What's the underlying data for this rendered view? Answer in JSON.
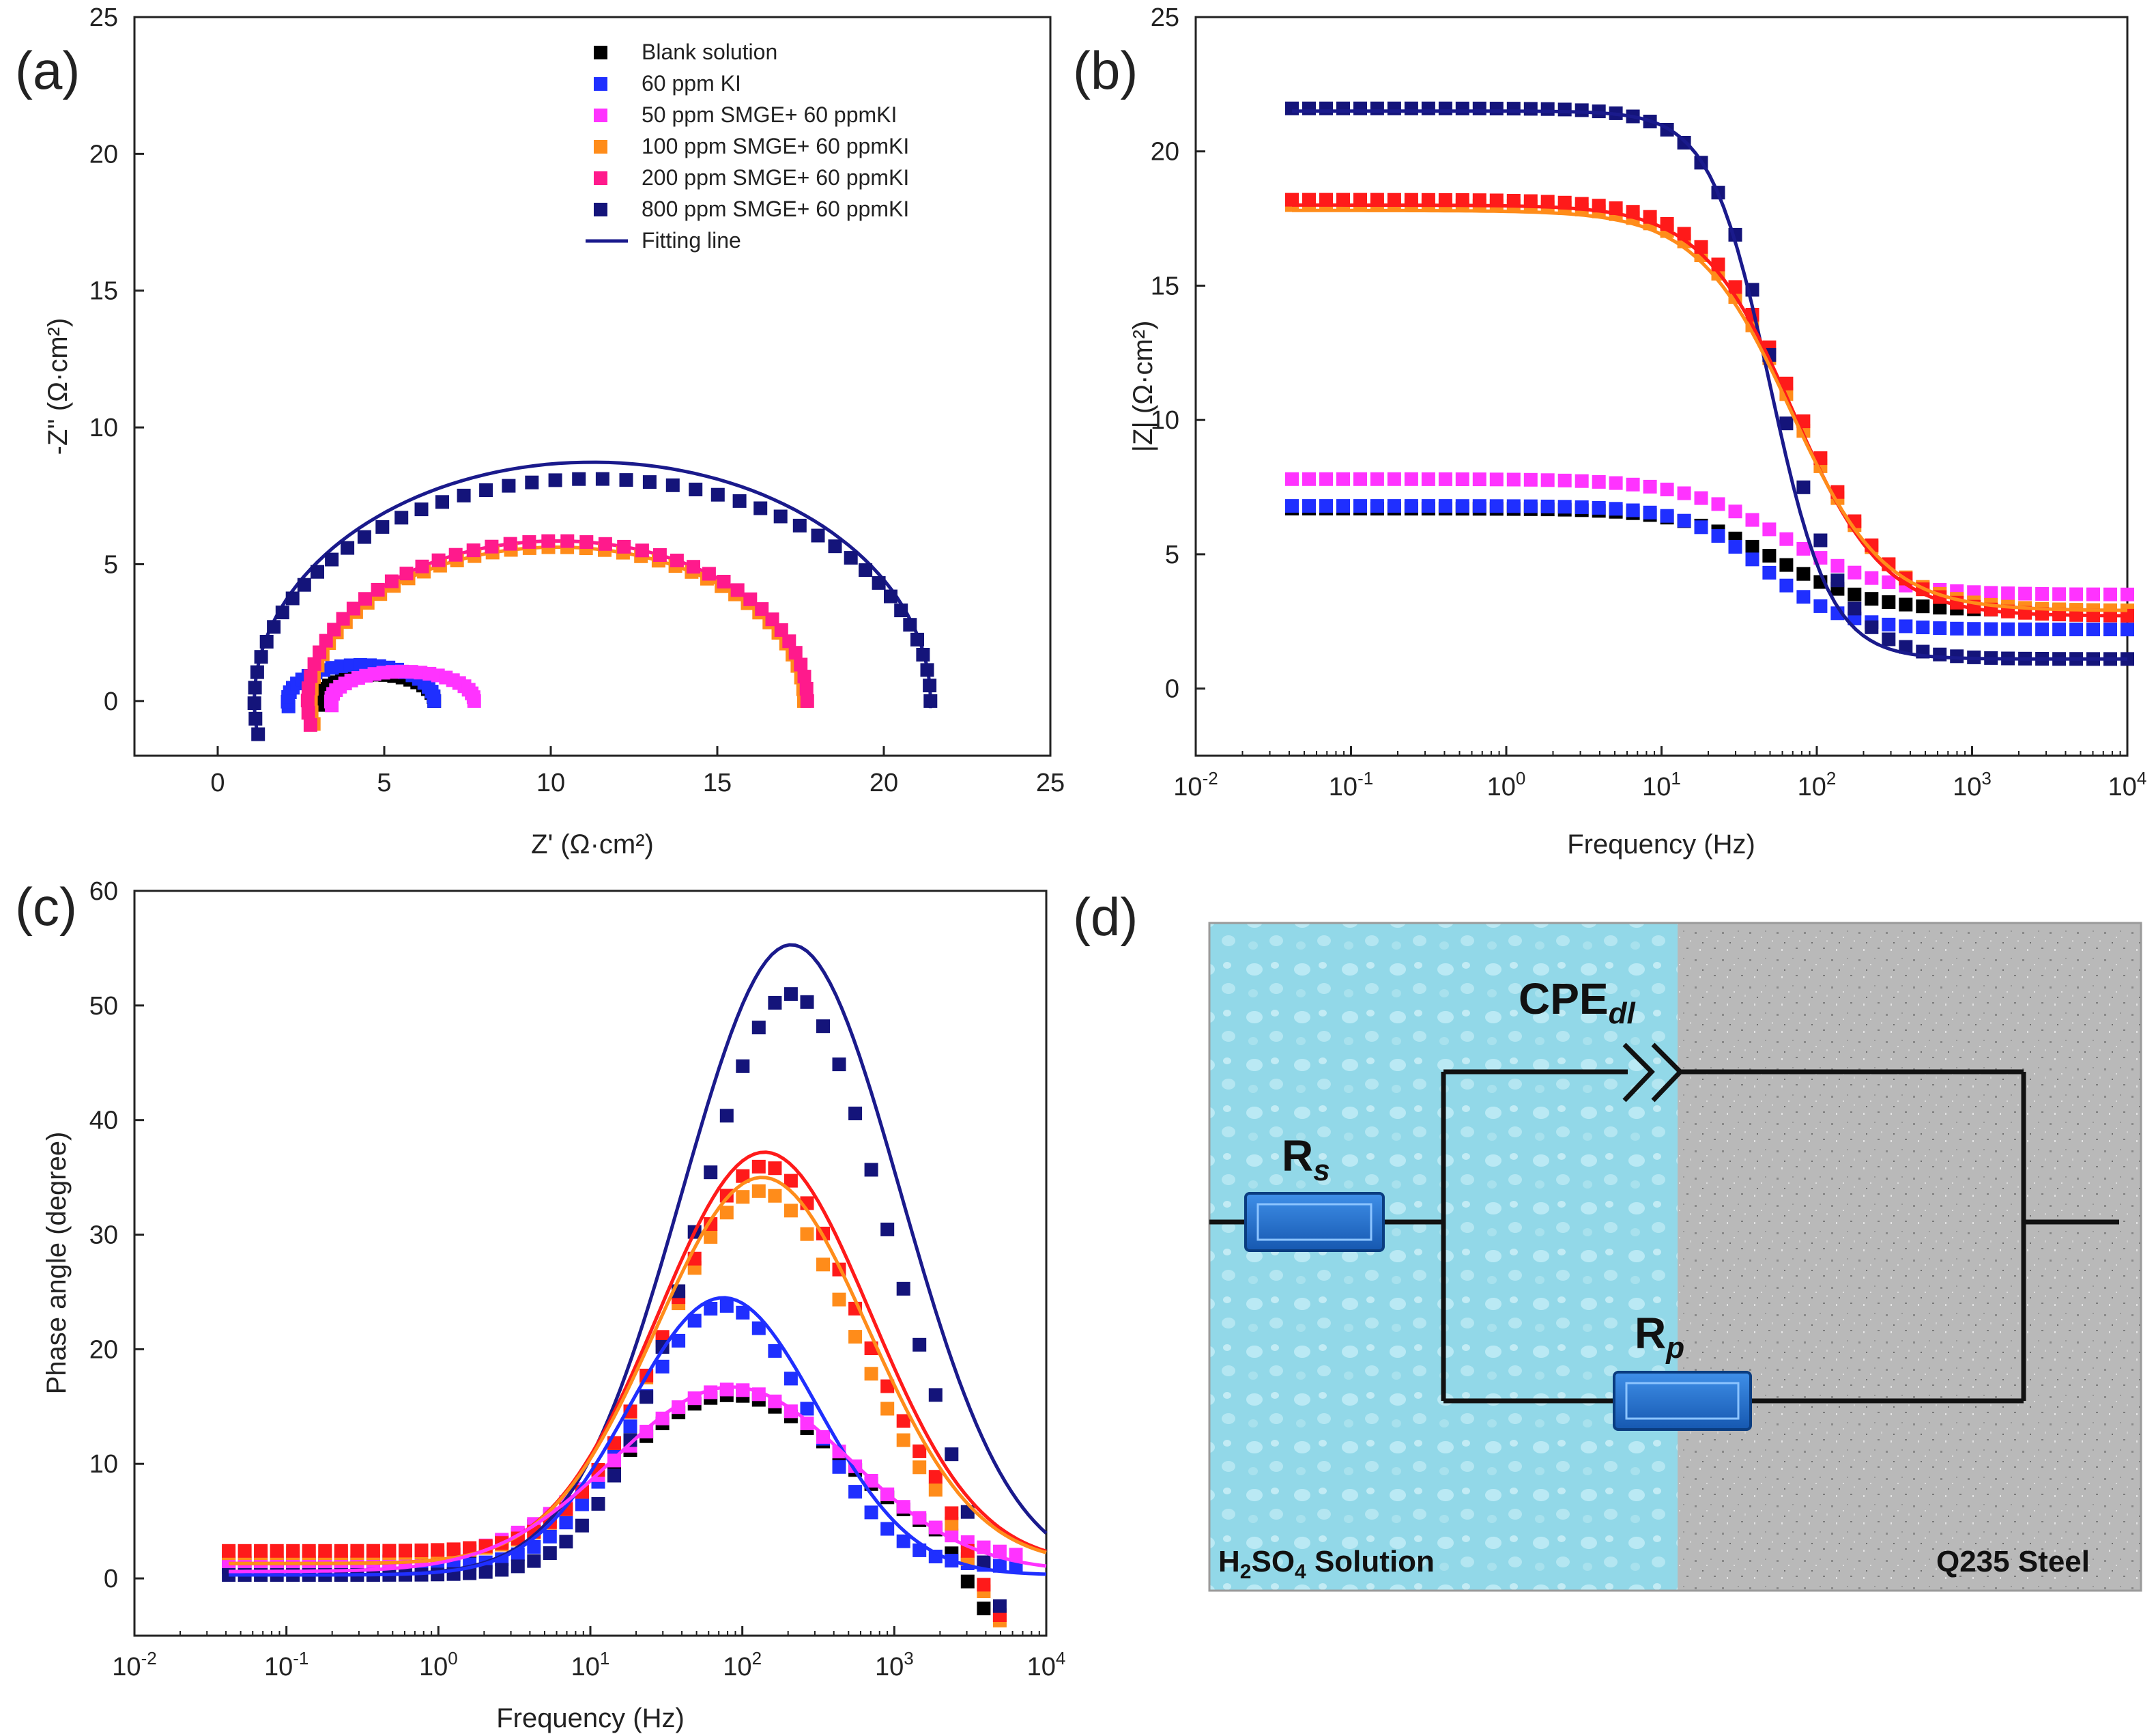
{
  "figure_labels": {
    "a": "(a)",
    "b": "(b)",
    "c": "(c)",
    "d": "(d)"
  },
  "colors": {
    "blank": "#000000",
    "ki": "#1f2fff",
    "s50": "#ff33ff",
    "s100": "#ff8c1a",
    "s200": "#ff1a8c",
    "s800": "#14147a",
    "fit": "#1a1a8c",
    "red": "#ff1a1a",
    "solution": "#8fd6e6",
    "steel": "#b8b8b8",
    "resistor": "#1e6fd0"
  },
  "chart_data": [
    {
      "id": "a",
      "type": "scatter",
      "title": "",
      "xlabel": "Z' (Ω·cm²)",
      "ylabel": "-Z'' (Ω·cm²)",
      "xlim": [
        -2.5,
        25
      ],
      "ylim": [
        -2,
        25
      ],
      "xticks": [
        0,
        5,
        10,
        15,
        20,
        25
      ],
      "yticks": [
        0,
        5,
        10,
        15,
        20,
        25
      ],
      "legend": [
        {
          "label": "Blank solution",
          "color_key": "blank",
          "kind": "marker"
        },
        {
          "label": "60 ppm KI",
          "color_key": "ki",
          "kind": "marker"
        },
        {
          "label": "50 ppm SMGE+ 60 ppmKI",
          "color_key": "s50",
          "kind": "marker"
        },
        {
          "label": "100 ppm SMGE+ 60 ppmKI",
          "color_key": "s100",
          "kind": "marker"
        },
        {
          "label": "200 ppm SMGE+ 60 ppmKI",
          "color_key": "s200",
          "kind": "marker"
        },
        {
          "label": "800 ppm SMGE+ 60 ppmKI",
          "color_key": "s800",
          "kind": "marker"
        },
        {
          "label": "Fitting line",
          "color_key": "fit",
          "kind": "line"
        }
      ],
      "series": [
        {
          "name": "Blank solution",
          "color_key": "blank",
          "rs": 3.0,
          "rt": 3.5,
          "depress": 0.55,
          "npts": 22
        },
        {
          "name": "60 ppm KI",
          "color_key": "ki",
          "rs": 2.1,
          "rt": 4.4,
          "depress": 0.6,
          "npts": 26
        },
        {
          "name": "50 ppm SMGE+ 60 ppmKI",
          "color_key": "s50",
          "rs": 3.4,
          "rt": 4.3,
          "depress": 0.5,
          "npts": 26
        },
        {
          "name": "100 ppm SMGE+ 60 ppmKI",
          "color_key": "s100",
          "rs": 2.8,
          "rt": 14.8,
          "depress": 0.76,
          "npts": 44
        },
        {
          "name": "200 ppm SMGE+ 60 ppmKI",
          "color_key": "s200",
          "rs": 2.7,
          "rt": 15.0,
          "depress": 0.78,
          "npts": 44
        },
        {
          "name": "800 ppm SMGE+ 60 ppmKI",
          "color_key": "s800",
          "rs": 1.1,
          "rt": 20.3,
          "depress": 0.8,
          "npts": 48
        }
      ],
      "fits": [
        {
          "color_key": "fit",
          "rs": 1.1,
          "rt": 20.3,
          "depress": 0.86
        },
        {
          "color_key": "s200",
          "rs": 2.7,
          "rt": 15.0,
          "depress": 0.78
        },
        {
          "color_key": "s100",
          "rs": 2.8,
          "rt": 14.8,
          "depress": 0.76
        },
        {
          "color_key": "s50",
          "rs": 3.4,
          "rt": 4.3,
          "depress": 0.5
        },
        {
          "color_key": "ki",
          "rs": 2.1,
          "rt": 4.4,
          "depress": 0.62
        }
      ]
    },
    {
      "id": "b",
      "type": "scatter",
      "title": "",
      "xlabel": "Frequency (Hz)",
      "ylabel": "|Z| (Ω·cm²)",
      "xlim_log10": [
        -2,
        4
      ],
      "ylim": [
        -2.5,
        25
      ],
      "xtick_exponents": [
        -2,
        -1,
        0,
        1,
        2,
        3,
        4
      ],
      "yticks": [
        0,
        5,
        10,
        15,
        20,
        25
      ],
      "series": [
        {
          "name": "Blank solution",
          "color_key": "blank",
          "high": 6.7,
          "low": 2.9,
          "f0": 55,
          "p": 0.8
        },
        {
          "name": "60 ppm KI",
          "color_key": "ki",
          "high": 6.8,
          "low": 2.2,
          "f0": 45,
          "p": 0.95
        },
        {
          "name": "50 ppm SMGE+ 60 ppmKI",
          "color_key": "s50",
          "high": 7.8,
          "low": 3.5,
          "f0": 60,
          "p": 0.75
        },
        {
          "name": "100 ppm SMGE+ 60 ppmKI",
          "color_key": "s100",
          "high": 18.0,
          "low": 2.9,
          "f0": 70,
          "p": 0.8
        },
        {
          "name": "200 ppm SMGE+ 60 ppmKI",
          "color_key": "red",
          "high": 18.2,
          "low": 2.7,
          "f0": 75,
          "p": 0.8
        },
        {
          "name": "800 ppm SMGE+ 60 ppmKI",
          "color_key": "s800",
          "high": 21.6,
          "low": 1.1,
          "f0": 55,
          "p": 1.1
        }
      ],
      "fits": [
        {
          "color_key": "fit",
          "high": 21.5,
          "low": 1.1,
          "f0": 50,
          "p": 1.25
        },
        {
          "color_key": "red",
          "high": 18.0,
          "low": 2.7,
          "f0": 70,
          "p": 0.82
        },
        {
          "color_key": "s100",
          "high": 17.8,
          "low": 2.9,
          "f0": 68,
          "p": 0.8
        }
      ]
    },
    {
      "id": "c",
      "type": "scatter",
      "title": "",
      "xlabel": "Frequency (Hz)",
      "ylabel": "Phase angle (degree)",
      "xlim_log10": [
        -2,
        4
      ],
      "ylim": [
        -5,
        60
      ],
      "xtick_exponents": [
        -2,
        -1,
        0,
        1,
        2,
        3,
        4
      ],
      "yticks": [
        0,
        10,
        20,
        30,
        40,
        50,
        60
      ],
      "series": [
        {
          "name": "Blank solution",
          "color_key": "blank",
          "peak": 16.0,
          "fpeak": 85,
          "width": 0.75,
          "base": 1.3,
          "drop": true
        },
        {
          "name": "60 ppm KI",
          "color_key": "ki",
          "peak": 23.8,
          "fpeak": 75,
          "width": 0.55,
          "base": 1.0,
          "drop": false
        },
        {
          "name": "50 ppm SMGE+ 60 ppmKI",
          "color_key": "s50",
          "peak": 16.5,
          "fpeak": 85,
          "width": 0.75,
          "base": 1.4,
          "drop": false
        },
        {
          "name": "100 ppm SMGE+ 60 ppmKI",
          "color_key": "s100",
          "peak": 33.8,
          "fpeak": 130,
          "width": 0.62,
          "base": 2.2,
          "drop": true
        },
        {
          "name": "200 ppm SMGE+ 60 ppmKI",
          "color_key": "red",
          "peak": 36.0,
          "fpeak": 140,
          "width": 0.62,
          "base": 2.4,
          "drop": true
        },
        {
          "name": "800 ppm SMGE+ 60 ppmKI",
          "color_key": "s800",
          "peak": 51.0,
          "fpeak": 210,
          "width": 0.62,
          "base": 0.3,
          "drop": true
        }
      ],
      "fits": [
        {
          "color_key": "fit",
          "peak": 55.3,
          "fpeak": 210,
          "width": 0.72,
          "base": 0.3
        },
        {
          "color_key": "red",
          "peak": 37.2,
          "fpeak": 140,
          "width": 0.7,
          "base": 1.3
        },
        {
          "color_key": "s100",
          "peak": 35.0,
          "fpeak": 135,
          "width": 0.7,
          "base": 1.3
        },
        {
          "color_key": "ki",
          "peak": 24.5,
          "fpeak": 75,
          "width": 0.62,
          "base": 0.3
        },
        {
          "color_key": "s50",
          "peak": 16.7,
          "fpeak": 85,
          "width": 0.78,
          "base": 0.6
        }
      ]
    }
  ],
  "circuit": {
    "cpe_label": "CPE",
    "cpe_sub": "dl",
    "rs_label": "R",
    "rs_sub": "s",
    "rp_label": "R",
    "rp_sub": "p",
    "solution_label_pre": "H",
    "solution_label_sub1": "2",
    "solution_label_mid": "SO",
    "solution_label_sub2": "4",
    "solution_label_post": " Solution",
    "steel_label": "Q235 Steel"
  }
}
